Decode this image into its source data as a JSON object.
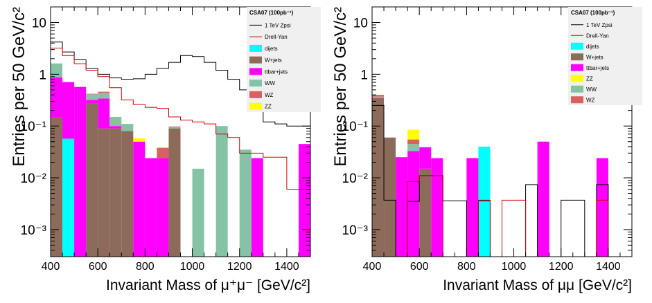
{
  "chart_data": [
    {
      "type": "bar",
      "stacked": true,
      "yscale": "log",
      "xlabel": "Invariant Mass of μ⁺μ⁻ [GeV/c²]",
      "ylabel": "Entries per 50 GeV/c²",
      "xlim": [
        400,
        1500
      ],
      "ylim": [
        0.0003,
        20
      ],
      "xticks": [
        "400",
        "600",
        "800",
        "1000",
        "1200",
        "1400"
      ],
      "yticks": [
        "10⁻³",
        "10⁻²",
        "10⁻¹",
        "1",
        "10"
      ],
      "bin_edges": [
        400,
        450,
        500,
        550,
        600,
        650,
        700,
        750,
        800,
        850,
        900,
        950,
        1000,
        1050,
        1100,
        1150,
        1200,
        1250,
        1300,
        1350,
        1400,
        1450,
        1500
      ],
      "legend": {
        "title": "CSA07 (100pb⁻¹)",
        "placement": "top-right",
        "entries": [
          "1 TeV Zpsi",
          "Drell-Yan",
          "dijets",
          "W+jets",
          "ttbar+jets",
          "WW",
          "WZ",
          "ZZ"
        ]
      },
      "stack": [
        {
          "name": "W+jets",
          "color": "#8c6b5a",
          "values": [
            0.15,
            0,
            0,
            0.27,
            0.09,
            0.09,
            0.08,
            0,
            0,
            0,
            0.09,
            0,
            0,
            0,
            0,
            0,
            0,
            0,
            0,
            0,
            0,
            0
          ]
        },
        {
          "name": "dijets",
          "color": "#00ffff",
          "values": [
            0,
            0.057,
            0,
            0,
            0,
            0,
            0,
            0,
            0,
            0,
            0,
            0,
            0,
            0,
            0,
            0,
            0,
            0,
            0,
            0,
            0,
            0
          ]
        },
        {
          "name": "ttbar+jets",
          "color": "#ff00ff",
          "values": [
            0.72,
            0.65,
            0.57,
            0.05,
            0.25,
            0.01,
            0,
            0.05,
            0.024,
            0.024,
            0,
            0,
            0,
            0,
            0,
            0,
            0,
            0.024,
            0,
            0,
            0,
            0.045
          ]
        },
        {
          "name": "WW",
          "color": "#86c3a6",
          "values": [
            0.75,
            0,
            0,
            0.09,
            0.1,
            0.05,
            0.03,
            0,
            0,
            0,
            0.005,
            0,
            0.015,
            0,
            0.1,
            0,
            0.035,
            0,
            0,
            0,
            0,
            0
          ]
        },
        {
          "name": "WZ",
          "color": "#d9615f",
          "values": [
            0,
            0,
            0,
            0.01,
            0.02,
            0,
            0,
            0,
            0,
            0.014,
            0.003,
            0,
            0,
            0,
            0,
            0,
            0,
            0,
            0,
            0,
            0,
            0
          ]
        },
        {
          "name": "ZZ",
          "color": "#ffff00",
          "values": [
            0,
            0,
            0,
            0,
            0,
            0,
            0,
            0.008,
            0,
            0.001,
            0,
            0,
            0,
            0,
            0,
            0,
            0,
            0,
            0,
            0,
            0,
            0
          ]
        }
      ],
      "lines": [
        {
          "name": "1 TeV Zpsi",
          "color": "#000000",
          "values": [
            4.2,
            2.7,
            1.9,
            1.3,
            1.0,
            0.85,
            0.8,
            0.82,
            1.0,
            1.3,
            1.7,
            2.3,
            2.2,
            1.7,
            1.2,
            0.8,
            0.5,
            0.35,
            0.12,
            0.11,
            0.1,
            0.1
          ]
        },
        {
          "name": "Drell-Yan",
          "color": "#cc0000",
          "values": [
            3.2,
            2.3,
            1.6,
            1.2,
            0.9,
            0.55,
            0.32,
            0.26,
            0.23,
            0.22,
            0.15,
            0.13,
            0.12,
            0.11,
            0.07,
            0.06,
            0.03,
            0.03,
            0.025,
            0.025,
            0.006,
            0.006
          ]
        }
      ]
    },
    {
      "type": "bar",
      "stacked": true,
      "yscale": "log",
      "xlabel": "Invariant Mass of μμ [GeV/c²]",
      "ylabel": "Entries per 50 GeV/c²",
      "xlim": [
        400,
        1500
      ],
      "ylim": [
        0.0003,
        20
      ],
      "xticks": [
        "400",
        "600",
        "800",
        "1000",
        "1200",
        "1400"
      ],
      "yticks": [
        "10⁻³",
        "10⁻²",
        "10⁻¹",
        "1",
        "10"
      ],
      "bin_edges": [
        400,
        450,
        500,
        550,
        600,
        650,
        700,
        750,
        800,
        850,
        900,
        950,
        1000,
        1050,
        1100,
        1150,
        1200,
        1250,
        1300,
        1350,
        1400,
        1450,
        1500
      ],
      "legend": {
        "title": "CSA07 (100pb⁻¹)",
        "placement": "top-right",
        "entries": [
          "1 TeV Zpsi",
          "Drell-Yan",
          "dijets",
          "W+jets",
          "ttbar+jets",
          "ZZ",
          "WW",
          "WZ"
        ]
      },
      "stack": [
        {
          "name": "W+jets",
          "color": "#8c6b5a",
          "values": [
            0.35,
            0.06,
            0,
            0,
            0.015,
            0,
            0,
            0,
            0,
            0,
            0,
            0,
            0,
            0,
            0,
            0,
            0,
            0,
            0,
            0,
            0,
            0
          ]
        },
        {
          "name": "dijets",
          "color": "#00ffff",
          "values": [
            0,
            0,
            0,
            0,
            0,
            0,
            0,
            0,
            0,
            0.04,
            0,
            0,
            0,
            0,
            0,
            0,
            0,
            0,
            0,
            0,
            0,
            0
          ]
        },
        {
          "name": "ttbar+jets",
          "color": "#ff00ff",
          "values": [
            0,
            0,
            0.025,
            0.033,
            0.024,
            0.024,
            0,
            0,
            0.024,
            0,
            0,
            0,
            0,
            0,
            0.05,
            0,
            0,
            0,
            0,
            0.024,
            0,
            0
          ]
        },
        {
          "name": "WW",
          "color": "#86c3a6",
          "values": [
            0.02,
            0,
            0,
            0.012,
            0,
            0,
            0,
            0,
            0,
            0,
            0,
            0,
            0,
            0,
            0,
            0,
            0,
            0,
            0,
            0,
            0,
            0
          ]
        },
        {
          "name": "WZ",
          "color": "#d9615f",
          "values": [
            0.03,
            0,
            0,
            0.01,
            0,
            0,
            0,
            0,
            0,
            0,
            0,
            0,
            0,
            0,
            0,
            0,
            0,
            0,
            0,
            0,
            0,
            0
          ]
        },
        {
          "name": "ZZ",
          "color": "#ffff00",
          "values": [
            0,
            0,
            0,
            0.03,
            0,
            0,
            0,
            0,
            0,
            0,
            0,
            0,
            0,
            0,
            0,
            0,
            0,
            0,
            0,
            0,
            0,
            0
          ]
        }
      ],
      "lines": [
        {
          "name": "1 TeV Zpsi",
          "color": "#000000",
          "values": [
            0.25,
            0.0037,
            0.0003,
            0.0035,
            0.011,
            0.011,
            0.0036,
            0.0036,
            0.0003,
            0.0036,
            0.0003,
            0.0003,
            0.0003,
            0.0074,
            0.0003,
            0.0003,
            0.0037,
            0.0037,
            0.0003,
            0.0074,
            0.0003,
            0.0003
          ]
        },
        {
          "name": "Drell-Yan",
          "color": "#cc0000",
          "values": [
            0.0003,
            0.0003,
            0.0003,
            0.0085,
            0.011,
            0.011,
            0.0003,
            0.0003,
            0.0003,
            0.0037,
            0.0003,
            0.0037,
            0.0037,
            0.0003,
            0.0003,
            0.0003,
            0.0003,
            0.0003,
            0.0003,
            0.0037,
            0.0003,
            0.0003
          ]
        }
      ]
    }
  ]
}
